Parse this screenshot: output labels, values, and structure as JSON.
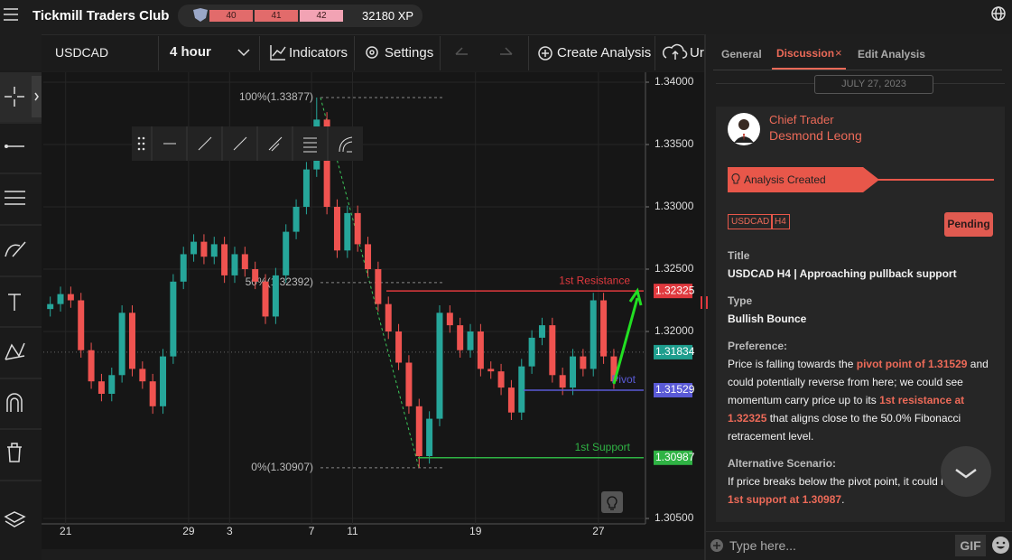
{
  "header": {
    "title": "Tickmill Traders Club",
    "levels": [
      "40",
      "41",
      "42"
    ],
    "xp": "32180 XP"
  },
  "toolbar": {
    "symbol": "USDCAD",
    "interval": "4 hour",
    "indicators": "Indicators",
    "settings": "Settings",
    "create": "Create Analysis",
    "upload": "Ur"
  },
  "chart_data": {
    "type": "candlestick",
    "categories": [
      null,
      null,
      "21",
      null,
      null,
      null,
      null,
      null,
      null,
      null,
      null,
      null,
      null,
      null,
      "29",
      null,
      null,
      null,
      "3",
      null,
      null,
      null,
      null,
      null,
      null,
      null,
      "7",
      null,
      null,
      null,
      "11",
      null,
      null,
      null,
      null,
      null,
      null,
      null,
      null,
      null,
      null,
      null,
      "19",
      null,
      null,
      null,
      null,
      null,
      null,
      null,
      null,
      null,
      null,
      null,
      "27",
      null
    ],
    "open": [
      1.3218,
      1.3222,
      1.323,
      1.3225,
      1.3185,
      1.316,
      1.315,
      1.3165,
      1.3215,
      1.317,
      1.316,
      1.314,
      1.318,
      1.324,
      1.3262,
      1.3272,
      1.326,
      1.327,
      1.3245,
      1.3262,
      1.325,
      1.324,
      1.3212,
      1.3245,
      1.328,
      1.33,
      1.333,
      1.337,
      1.33,
      1.3265,
      1.3295,
      1.327,
      1.325,
      1.3222,
      1.32,
      1.3175,
      1.314,
      1.31,
      1.313,
      1.3215,
      1.3205,
      1.3185,
      1.32,
      1.317,
      1.3168,
      1.3155,
      1.3135,
      1.3172,
      1.3195,
      1.3205,
      1.3165,
      1.3155,
      1.318,
      1.317,
      1.3225,
      1.318
    ],
    "high": [
      1.3228,
      1.3236,
      1.3236,
      1.3231,
      1.3191,
      1.3166,
      1.3171,
      1.3221,
      1.3221,
      1.3176,
      1.3166,
      1.3186,
      1.3246,
      1.3268,
      1.3278,
      1.3278,
      1.3276,
      1.3276,
      1.3268,
      1.3268,
      1.3256,
      1.3246,
      1.3251,
      1.3286,
      1.3306,
      1.3336,
      1.33877,
      1.3376,
      1.3306,
      1.3301,
      1.3301,
      1.3276,
      1.3256,
      1.3228,
      1.3206,
      1.3181,
      1.3146,
      1.3136,
      1.3221,
      1.3221,
      1.3211,
      1.3206,
      1.3206,
      1.3176,
      1.3174,
      1.3161,
      1.3178,
      1.3201,
      1.3211,
      1.3211,
      1.3171,
      1.3186,
      1.3186,
      1.3231,
      1.3231,
      1.3186
    ],
    "low": [
      1.3212,
      1.3216,
      1.3219,
      1.3179,
      1.3154,
      1.3144,
      1.3144,
      1.3159,
      1.3164,
      1.3154,
      1.3134,
      1.3134,
      1.3174,
      1.3234,
      1.3256,
      1.3254,
      1.3254,
      1.3239,
      1.3239,
      1.3244,
      1.3234,
      1.3206,
      1.3206,
      1.3239,
      1.3274,
      1.3294,
      1.3324,
      1.3294,
      1.3259,
      1.3259,
      1.3264,
      1.3244,
      1.3216,
      1.3194,
      1.3169,
      1.3134,
      1.30907,
      1.3094,
      1.3124,
      1.3199,
      1.3179,
      1.3179,
      1.3164,
      1.3162,
      1.3149,
      1.3129,
      1.3129,
      1.3166,
      1.3189,
      1.3159,
      1.3149,
      1.3149,
      1.3164,
      1.3164,
      1.3174,
      1.3154
    ],
    "close": [
      1.3222,
      1.323,
      1.3225,
      1.3185,
      1.316,
      1.315,
      1.3165,
      1.3215,
      1.317,
      1.316,
      1.314,
      1.318,
      1.324,
      1.3262,
      1.3272,
      1.326,
      1.327,
      1.3245,
      1.3262,
      1.325,
      1.324,
      1.3212,
      1.3245,
      1.328,
      1.33,
      1.333,
      1.337,
      1.33,
      1.3265,
      1.3295,
      1.327,
      1.325,
      1.3222,
      1.32,
      1.3175,
      1.314,
      1.31,
      1.313,
      1.3215,
      1.3205,
      1.3185,
      1.32,
      1.317,
      1.3168,
      1.3155,
      1.3135,
      1.3172,
      1.3195,
      1.3205,
      1.3165,
      1.3155,
      1.318,
      1.317,
      1.3225,
      1.318,
      1.316
    ],
    "up_color": "#26a69a",
    "down_color": "#ef5350",
    "ylim": [
      1.305,
      1.34
    ],
    "yticks": [
      {
        "value": 1.34,
        "label": "1.34000"
      },
      {
        "value": 1.335,
        "label": "1.33500"
      },
      {
        "value": 1.33,
        "label": "1.33000"
      },
      {
        "value": 1.325,
        "label": "1.32500"
      },
      {
        "value": 1.32,
        "label": "1.32000"
      },
      {
        "value": 1.305,
        "label": "1.30500"
      }
    ],
    "grid": true,
    "fib": [
      {
        "label": "100%(1.33877)",
        "value": 1.33877
      },
      {
        "label": "50%(1.32392)",
        "value": 1.32392
      },
      {
        "label": "0%(1.30907)",
        "value": 1.30907
      }
    ],
    "levels": [
      {
        "name": "1st Resistance",
        "value": 1.32325,
        "color": "#e0393e"
      },
      {
        "name": "Pivot",
        "value": 1.31529,
        "color": "#5a5ad6"
      },
      {
        "name": "1st Support",
        "value": 1.30987,
        "color": "#2fb344"
      }
    ],
    "last_price": {
      "value": 1.31834,
      "color": "#1e9e8e"
    }
  },
  "panel": {
    "tabs": [
      "General",
      "Discussion",
      "Edit Analysis"
    ],
    "date": "JULY 27, 2023",
    "author_role": "Chief Trader",
    "author_name": "Desmond Leong",
    "event": "Analysis Created",
    "tags": [
      "USDCAD",
      "H4"
    ],
    "status": "Pending",
    "sections": [
      {
        "heading": "Title",
        "parts": [
          "USDCAD H4 | Approaching pullback support"
        ]
      },
      {
        "heading": "Type",
        "parts": [
          "Bullish Bounce"
        ]
      },
      {
        "heading": "Preference:",
        "parts": [
          "Price is falling towards the ",
          {
            "text": "pivot point of 1.31529",
            "strong": true
          },
          " and could potentially reverse from here; we could see momentum carry price up to its ",
          {
            "text": "1st resistance at 1.32325",
            "strong": true
          },
          " that aligns close to the 50.0% Fibonacci retracement level."
        ]
      },
      {
        "heading": "Alternative Scenario:",
        "parts": [
          "If price breaks below the pivot point, it could head to ",
          {
            "text": "1st support at 1.30987",
            "strong": true
          },
          "."
        ]
      }
    ],
    "input_placeholder": "Type here...",
    "gif": "GIF"
  }
}
